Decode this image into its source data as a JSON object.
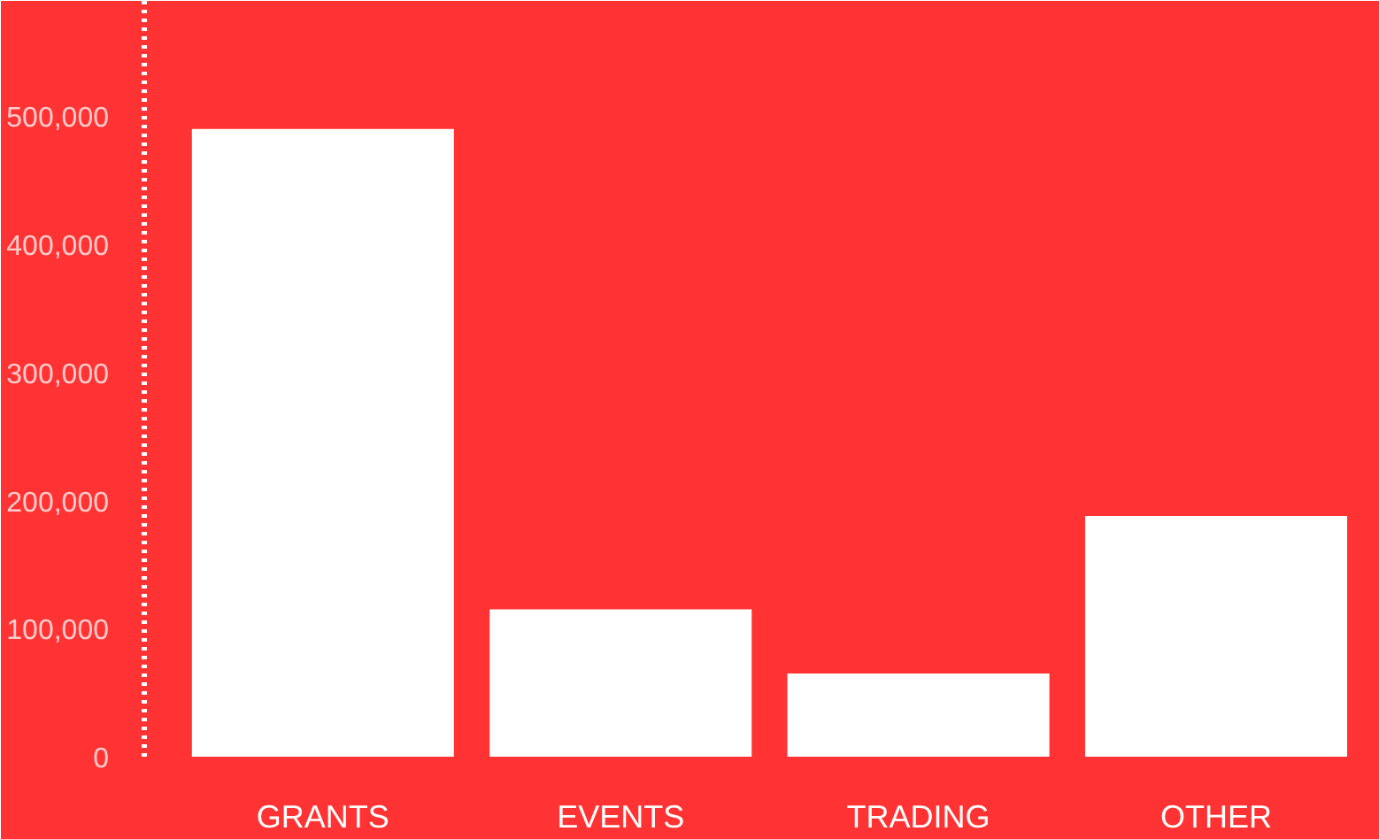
{
  "chart_data": {
    "type": "bar",
    "categories": [
      "GRANTS",
      "EVENTS",
      "TRADING",
      "OTHER"
    ],
    "values": [
      490000,
      115000,
      65000,
      188000
    ],
    "color": "#ffffff",
    "ylim": [
      0,
      590000
    ],
    "yticks": [
      0,
      {
        "value": 100000,
        "label": "100,000"
      },
      {
        "value": 200000,
        "label": "200,000"
      },
      {
        "value": 300000,
        "label": "300,000"
      },
      {
        "value": 400000,
        "label": "400,000"
      },
      {
        "value": 500000,
        "label": "500,000"
      }
    ],
    "grid": false
  }
}
